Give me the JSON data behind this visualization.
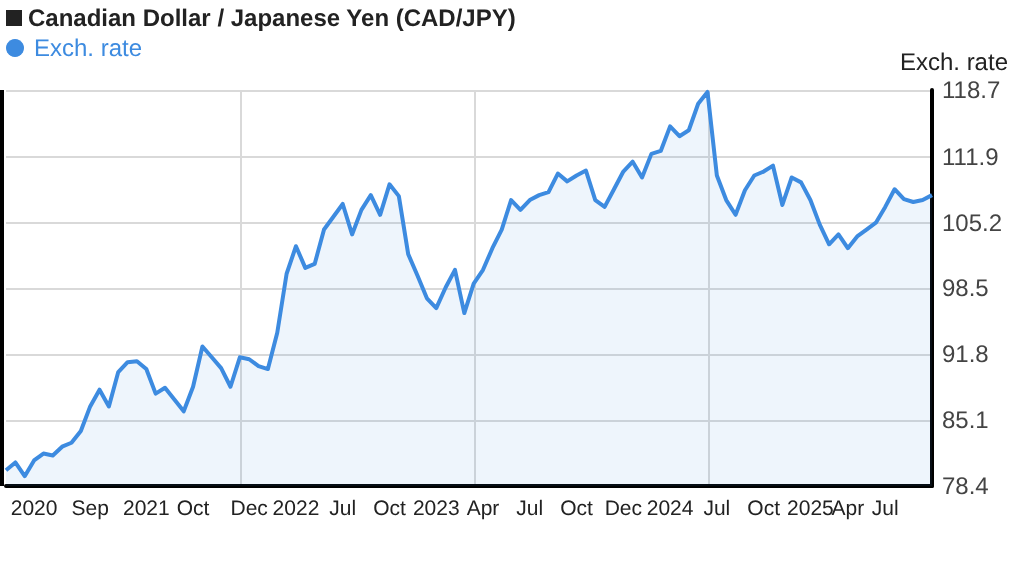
{
  "chart_data": {
    "type": "area",
    "title": "Canadian Dollar / Japanese Yen (CAD/JPY)",
    "ylabel": "Exch. rate",
    "categories": [
      null,
      null,
      null,
      "2020",
      null,
      null,
      null,
      null,
      null,
      "Sep",
      null,
      null,
      null,
      null,
      null,
      "2021",
      null,
      null,
      null,
      null,
      "Oct",
      null,
      null,
      null,
      null,
      null,
      "Dec",
      null,
      null,
      null,
      null,
      "2022",
      null,
      null,
      null,
      null,
      "Jul",
      null,
      null,
      null,
      null,
      "Oct",
      null,
      null,
      null,
      null,
      "2023",
      null,
      null,
      null,
      null,
      "Apr",
      null,
      null,
      null,
      null,
      "Jul",
      null,
      null,
      null,
      null,
      "Oct",
      null,
      null,
      null,
      null,
      "Dec",
      null,
      null,
      null,
      null,
      "2024",
      null,
      null,
      null,
      null,
      "Jul",
      null,
      null,
      null,
      null,
      "Oct",
      null,
      null,
      null,
      null,
      "2025",
      null,
      null,
      null,
      "Apr",
      null,
      null,
      null,
      "Jul",
      null,
      null,
      null,
      null,
      null
    ],
    "series": [
      {
        "name": "Exch. rate",
        "color": "#3d8be0",
        "values": [
          80.0,
          80.8,
          79.4,
          81.0,
          81.7,
          81.5,
          82.4,
          82.8,
          84.0,
          86.5,
          88.2,
          86.5,
          90.0,
          91.0,
          91.1,
          90.3,
          87.8,
          88.4,
          87.2,
          86.0,
          88.5,
          92.6,
          91.5,
          90.4,
          88.5,
          91.5,
          91.3,
          90.6,
          90.3,
          94.0,
          100.0,
          102.8,
          100.6,
          101.0,
          104.5,
          105.8,
          107.1,
          104.0,
          106.5,
          108.0,
          106.0,
          109.1,
          107.9,
          102.0,
          99.8,
          97.5,
          96.5,
          98.6,
          100.4,
          96.0,
          99.0,
          100.4,
          102.6,
          104.5,
          107.5,
          106.5,
          107.5,
          108.0,
          108.3,
          110.2,
          109.4,
          110.0,
          110.5,
          107.5,
          106.8,
          108.6,
          110.4,
          111.4,
          109.8,
          112.2,
          112.5,
          115.0,
          114.0,
          114.6,
          117.3,
          118.5,
          110.0,
          107.5,
          106.0,
          108.5,
          110.0,
          110.4,
          111.0,
          107.0,
          109.8,
          109.3,
          107.5,
          105.0,
          103.0,
          104.0,
          102.6,
          103.8,
          104.5,
          105.2,
          106.8,
          108.6,
          107.6,
          107.3,
          107.5,
          108.0
        ]
      }
    ],
    "ylim": [
      78.4,
      118.7
    ],
    "yticks": [
      78.4,
      85.1,
      91.8,
      98.5,
      105.2,
      111.9,
      118.7
    ],
    "grid": true,
    "legend": "top left",
    "marker": "none"
  }
}
